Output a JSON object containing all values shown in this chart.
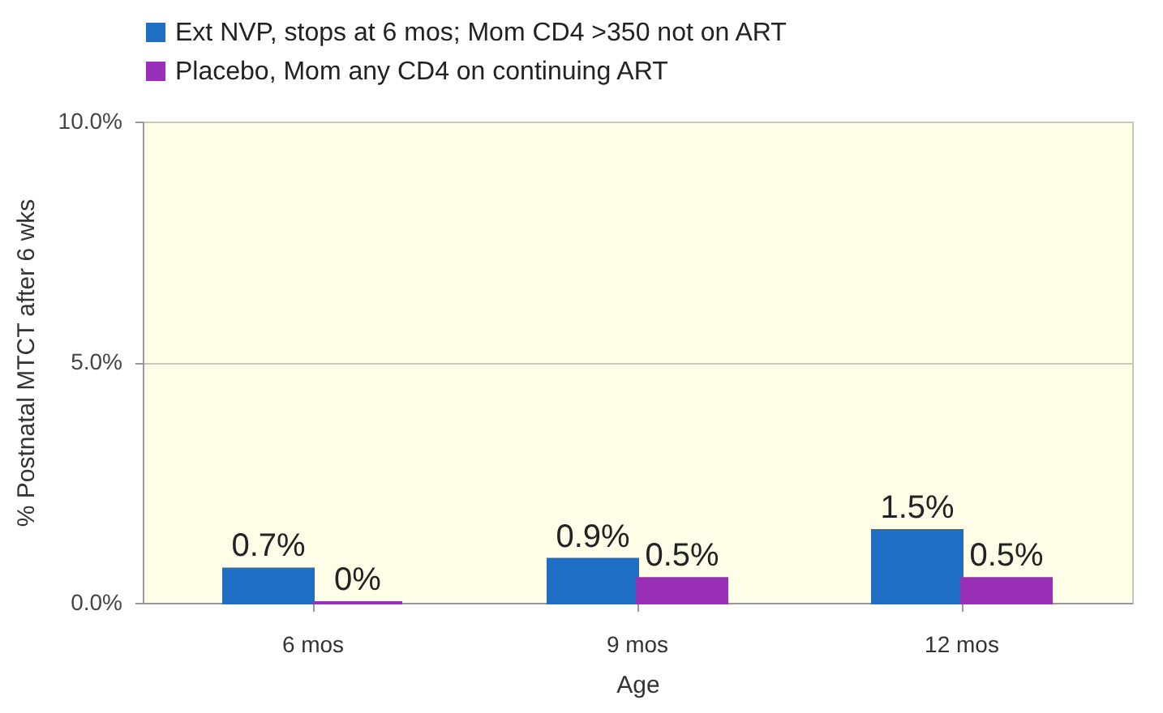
{
  "chart_data": {
    "type": "bar",
    "xlabel": "Age",
    "ylabel": "% Postnatal MTCT after 6 wks",
    "categories": [
      "6 mos",
      "9 mos",
      "12 mos"
    ],
    "series": [
      {
        "name": "Ext NVP, stops at 6 mos; Mom CD4 >350 not on ART",
        "color": "#1f6fc5",
        "values": [
          0.7,
          0.9,
          1.5
        ],
        "value_labels": [
          "0.7%",
          "0.9%",
          "1.5%"
        ]
      },
      {
        "name": "Placebo, Mom any CD4 on continuing ART",
        "color": "#9b30b8",
        "values": [
          0,
          0.5,
          0.5
        ],
        "value_labels": [
          "0%",
          "0.5%",
          "0.5%"
        ]
      }
    ],
    "ylim": [
      0,
      10
    ],
    "yticks": [
      {
        "value": 0,
        "label": "0.0%"
      },
      {
        "value": 5,
        "label": "5.0%"
      },
      {
        "value": 10,
        "label": "10.0%"
      }
    ],
    "grid": "y",
    "legend": "top"
  }
}
